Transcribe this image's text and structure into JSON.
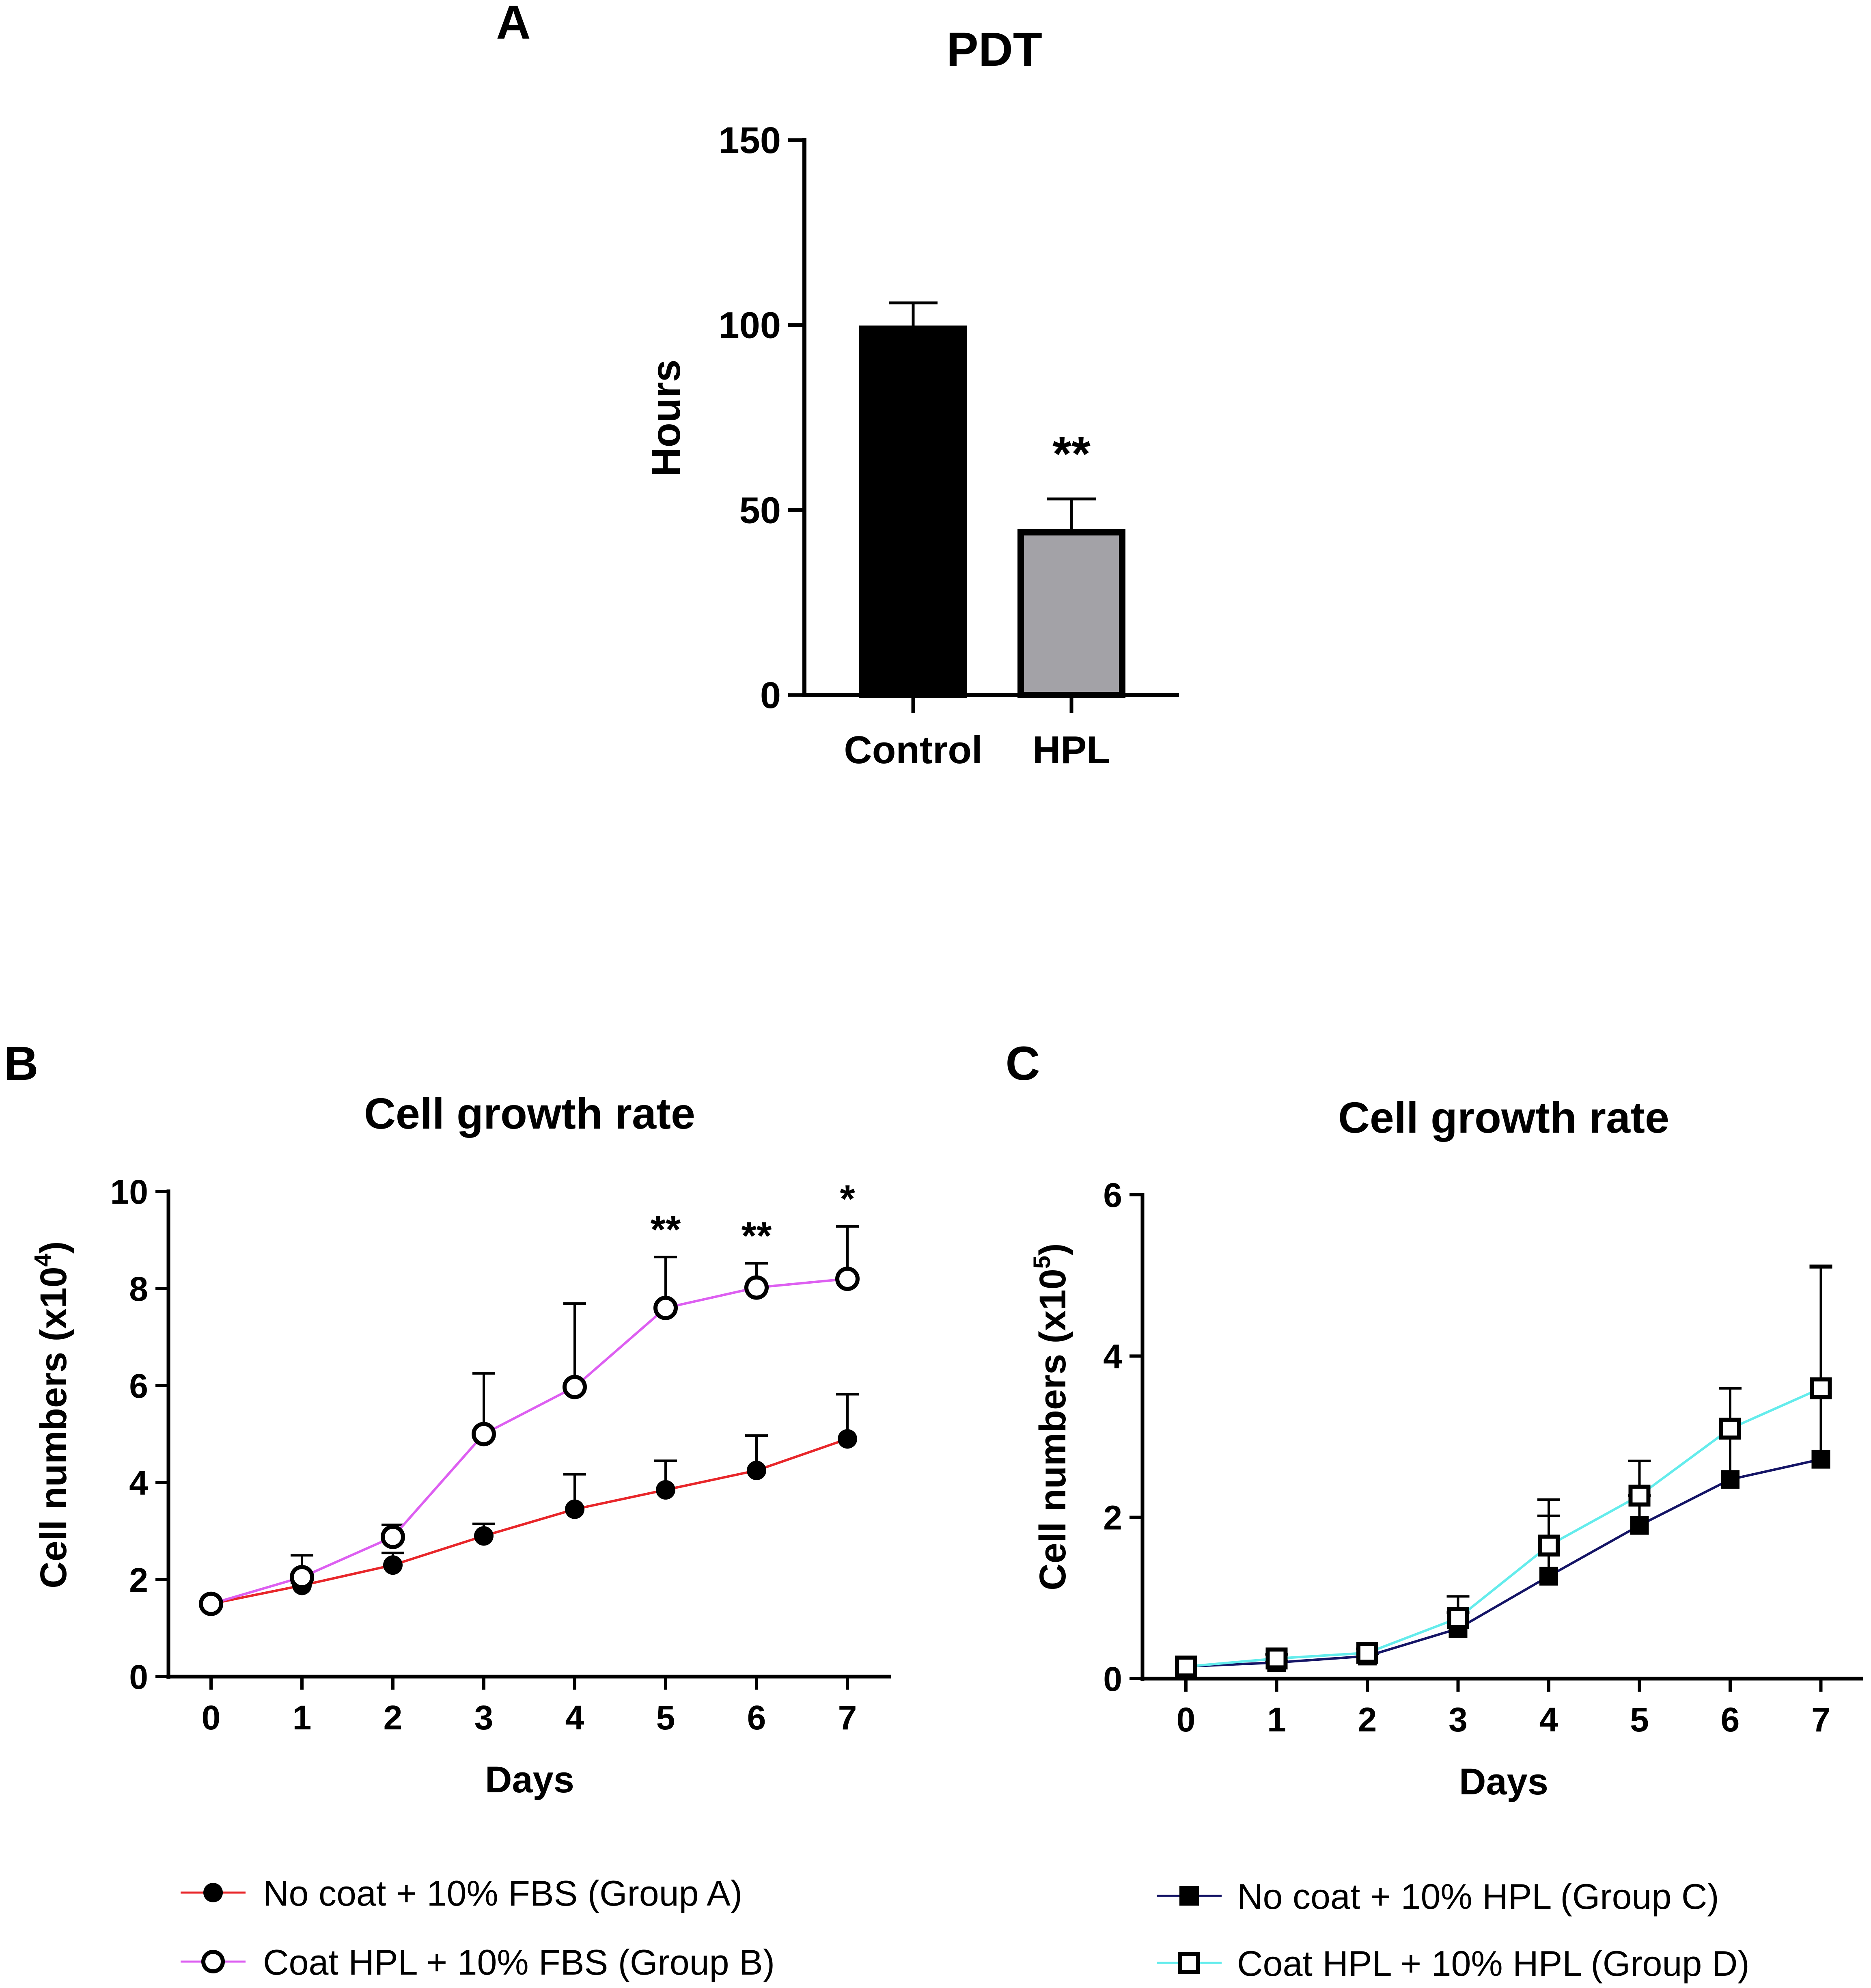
{
  "chart_data": [
    {
      "panel": "A",
      "type": "bar",
      "title": "PDT",
      "xlabel": "",
      "ylabel": "Hours",
      "ylim": [
        0,
        150
      ],
      "yticks": [
        0,
        50,
        100,
        150
      ],
      "categories": [
        "Control",
        "HPL"
      ],
      "values": [
        99,
        44
      ],
      "errors": [
        7,
        9
      ],
      "significance": [
        "",
        "**"
      ],
      "colors": [
        "#000000",
        "#a3a2a7"
      ],
      "grid": false
    },
    {
      "panel": "B",
      "type": "line",
      "title": "Cell growth rate",
      "xlabel": "Days",
      "ylabel": "Cell numbers  (x10",
      "ylabel_exp": "4",
      "ylabel_close": ")",
      "xlim": [
        -0.6,
        7.5
      ],
      "ylim": [
        0,
        10
      ],
      "xticks": [
        0,
        1,
        2,
        3,
        4,
        5,
        6,
        7
      ],
      "yticks": [
        0,
        2,
        4,
        6,
        8,
        10
      ],
      "x": [
        0,
        1,
        2,
        3,
        4,
        5,
        6,
        7
      ],
      "series": [
        {
          "name": "No coat + 10% FBS (Group A)",
          "color": "#e8262a",
          "marker": "filled-circle",
          "values": [
            1.5,
            1.88,
            2.3,
            2.9,
            3.45,
            3.85,
            4.25,
            4.9
          ],
          "errors": [
            0.0,
            0.05,
            0.25,
            0.25,
            0.72,
            0.6,
            0.72,
            0.92
          ]
        },
        {
          "name": "Coat HPL + 10% FBS (Group B)",
          "color": "#dd5ff1",
          "marker": "open-circle",
          "values": [
            1.5,
            2.05,
            2.88,
            5.0,
            5.97,
            7.6,
            8.02,
            8.2
          ],
          "errors": [
            0.0,
            0.45,
            0.25,
            1.25,
            1.72,
            1.05,
            0.5,
            1.08
          ]
        }
      ],
      "annotations": [
        {
          "x": 5,
          "text": "**"
        },
        {
          "x": 6,
          "text": "**"
        },
        {
          "x": 7,
          "text": "*"
        }
      ],
      "grid": false,
      "legend_position": "bottom"
    },
    {
      "panel": "C",
      "type": "line",
      "title": "Cell growth rate",
      "xlabel": "Days",
      "ylabel": "Cell numbers  (x10",
      "ylabel_exp": "5",
      "ylabel_close": ")",
      "xlim": [
        -0.6,
        7.5
      ],
      "ylim": [
        0,
        6
      ],
      "xticks": [
        0,
        1,
        2,
        3,
        4,
        5,
        6,
        7
      ],
      "yticks": [
        0,
        2,
        4,
        6
      ],
      "x": [
        0,
        1,
        2,
        3,
        4,
        5,
        6,
        7
      ],
      "series": [
        {
          "name": "No coat + 10% HPL (Group C)",
          "color": "#141466",
          "marker": "filled-square",
          "values": [
            0.15,
            0.2,
            0.28,
            0.62,
            1.27,
            1.9,
            2.47,
            2.72
          ],
          "errors": [
            0.0,
            0.02,
            0.03,
            0.2,
            0.75,
            0.37,
            1.13,
            2.38
          ]
        },
        {
          "name": "Coat HPL + 10% HPL (Group D)",
          "color": "#64ecec",
          "marker": "open-square",
          "values": [
            0.15,
            0.25,
            0.32,
            0.75,
            1.65,
            2.27,
            3.1,
            3.6
          ],
          "errors": [
            0.0,
            0.05,
            0.05,
            0.27,
            0.57,
            0.43,
            0.5,
            1.52
          ]
        }
      ],
      "annotations": [],
      "grid": false,
      "legend_position": "bottom"
    }
  ],
  "panels": {
    "a": {
      "letter": "A"
    },
    "b": {
      "letter": "B"
    },
    "c": {
      "letter": "C"
    }
  }
}
